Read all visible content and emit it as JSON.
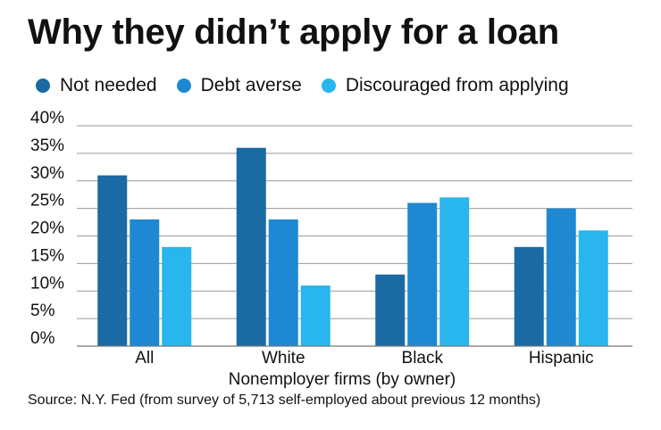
{
  "colors": {
    "not_needed": "#1a6aa3",
    "debt_averse": "#1f88d2",
    "discouraged": "#29b5ee",
    "grid": "#9a9a9a",
    "axis": "#777777"
  },
  "legend": {
    "items": [
      {
        "label": "Not needed",
        "color": "#1a6aa3"
      },
      {
        "label": "Debt averse",
        "color": "#1f88d2"
      },
      {
        "label": "Discouraged from applying",
        "color": "#29b5ee"
      }
    ]
  },
  "source_note": "Source: N.Y. Fed (from survey of 5,713 self-employed about previous 12 months)",
  "chart_data": {
    "type": "bar",
    "title": "Why they didn’t apply for a loan",
    "xlabel": "Nonemployer firms (by owner)",
    "ylabel": "",
    "categories": [
      "All",
      "White",
      "Black",
      "Hispanic"
    ],
    "series": [
      {
        "name": "Not needed",
        "color": "#1a6aa3",
        "values": [
          31,
          36,
          13,
          18
        ]
      },
      {
        "name": "Debt averse",
        "color": "#1f88d2",
        "values": [
          23,
          23,
          26,
          25
        ]
      },
      {
        "name": "Discouraged from applying",
        "color": "#29b5ee",
        "values": [
          18,
          11,
          27,
          21
        ]
      }
    ],
    "ylim": [
      0,
      40
    ],
    "yticks": [
      0,
      5,
      10,
      15,
      20,
      25,
      30,
      35,
      40
    ],
    "ytick_labels": [
      "0%",
      "5%",
      "10%",
      "15%",
      "20%",
      "25%",
      "30%",
      "35%",
      "40%"
    ],
    "grid": true,
    "legend_position": "top"
  }
}
